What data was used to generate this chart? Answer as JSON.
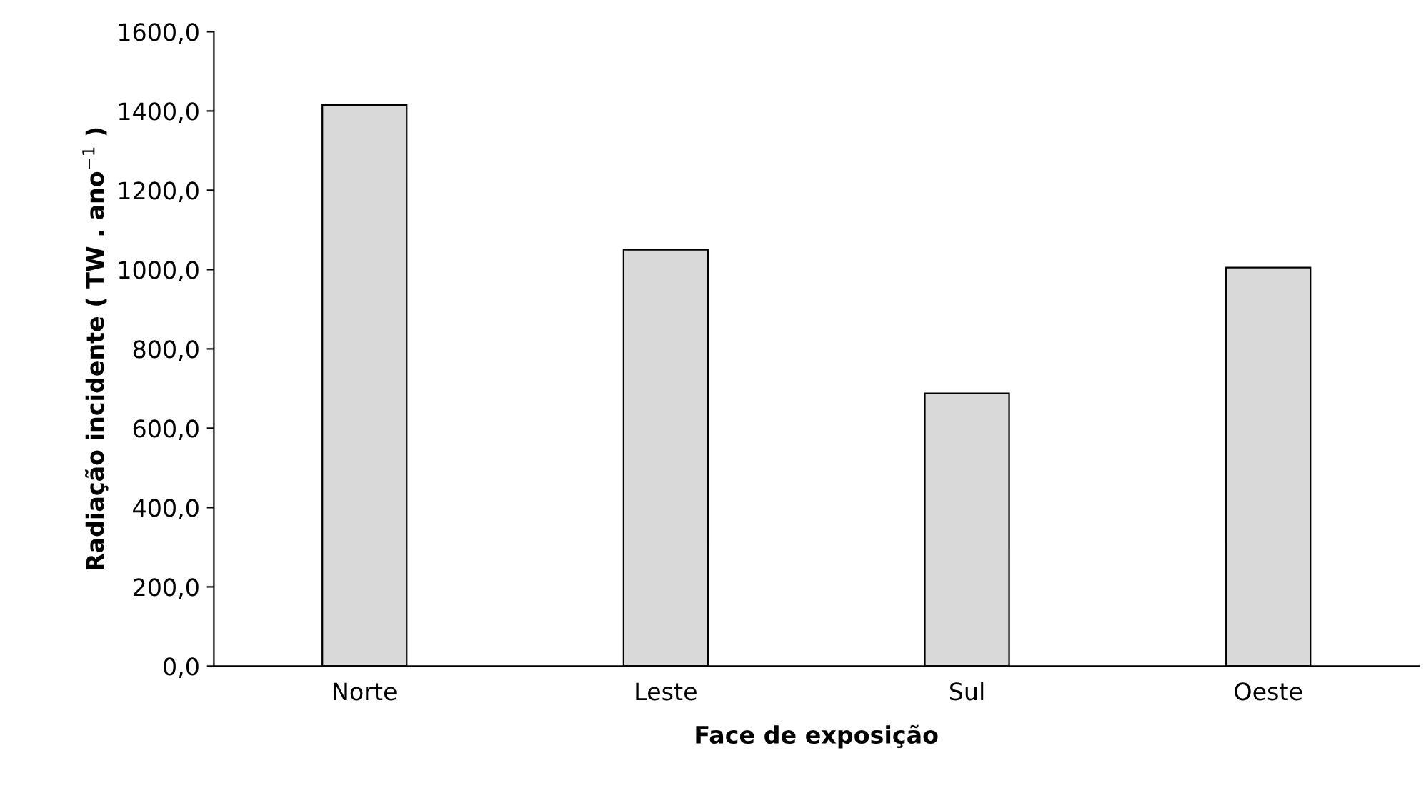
{
  "chart_data": {
    "type": "bar",
    "xlabel": "Face de exposição",
    "ylabel": "Radiação incidente ( TW . ano$^{−1}$ )",
    "categories": [
      "Norte",
      "Leste",
      "Sul",
      "Oeste"
    ],
    "series": [
      {
        "color": "#d9d9d9",
        "values": [
          1415,
          1050,
          688,
          1005
        ]
      }
    ],
    "ylim": [
      0,
      1600
    ],
    "yticks": [
      {
        "value": 0,
        "label": "0,0"
      },
      {
        "value": 200,
        "label": "200,0"
      },
      {
        "value": 400,
        "label": "400,0"
      },
      {
        "value": 600,
        "label": "600,0"
      },
      {
        "value": 800,
        "label": "800,0"
      },
      {
        "value": 1000,
        "label": "1000,0"
      },
      {
        "value": 1200,
        "label": "1200,0"
      },
      {
        "value": 1400,
        "label": "1400,0"
      },
      {
        "value": 1600,
        "label": "1600,0"
      }
    ],
    "grid": false,
    "legend": false
  }
}
